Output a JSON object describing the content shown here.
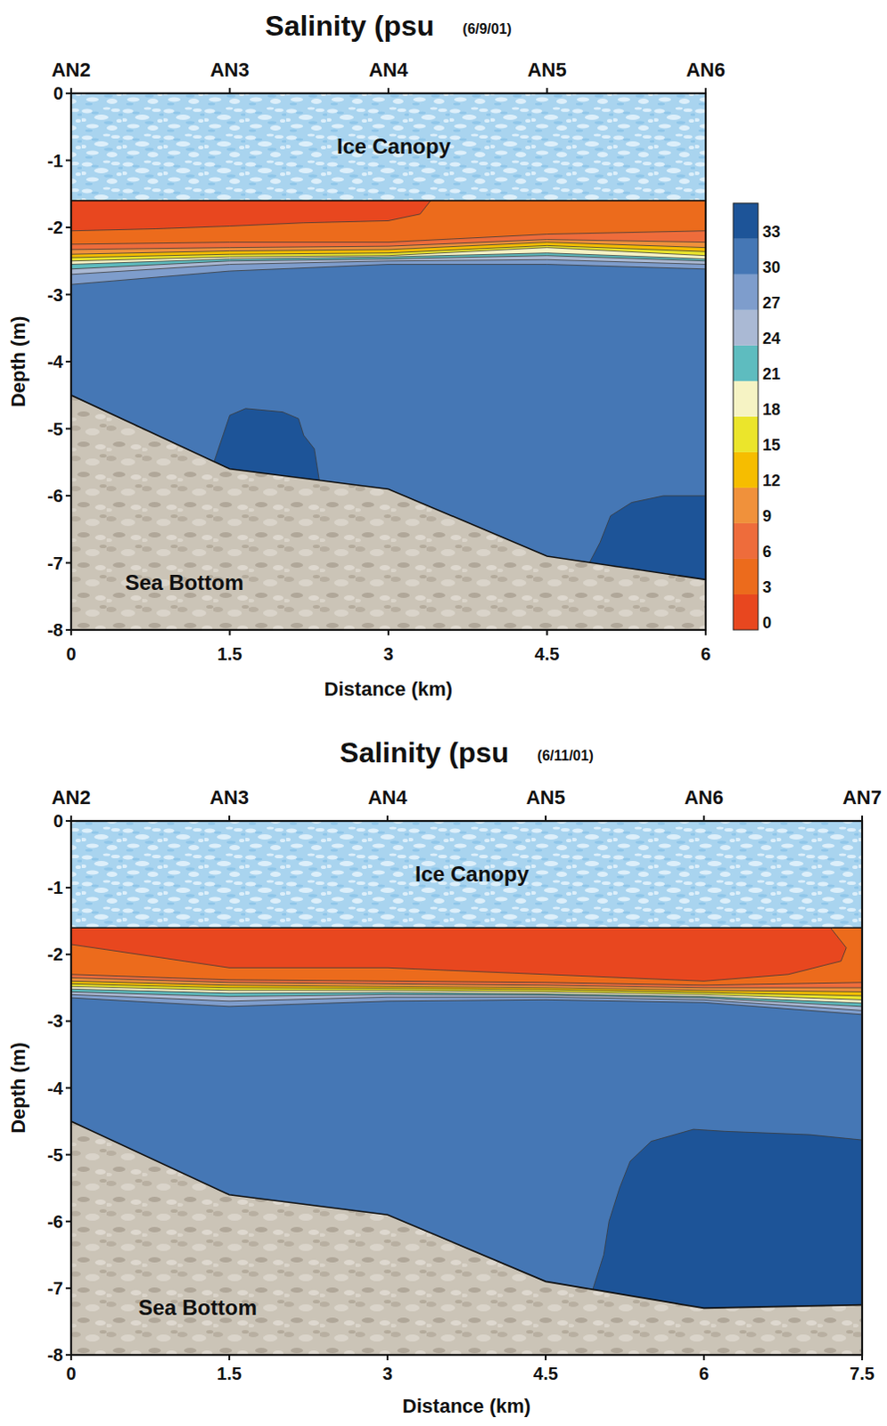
{
  "chart_data": [
    {
      "type": "contour",
      "title": "Salinity (psu",
      "subtitle": "(6/9/01)",
      "xlabel": "Distance (km)",
      "ylabel": "Depth (m)",
      "xlim": [
        0,
        6
      ],
      "xticks": [
        0,
        1.5,
        3,
        4.5,
        6
      ],
      "ylim": [
        -8,
        0
      ],
      "yticks": [
        -8,
        -7,
        -6,
        -5,
        -4,
        -3,
        -2,
        -1,
        0
      ],
      "stations": [
        {
          "value": 0,
          "label": "AN2"
        },
        {
          "value": 1.5,
          "label": "AN3"
        },
        {
          "value": 3,
          "label": "AN4"
        },
        {
          "value": 4.5,
          "label": "AN5"
        },
        {
          "value": 6,
          "label": "AN6"
        }
      ],
      "ice": {
        "label": "Ice Canopy",
        "depth": -1.6
      },
      "sea_bottom": {
        "label": "Sea Bottom",
        "x": [
          0,
          1.5,
          3,
          4.5,
          6
        ],
        "depth": [
          -4.5,
          -5.6,
          -5.9,
          -6.9,
          -7.25
        ]
      },
      "colorbar": {
        "levels": [
          0,
          3,
          6,
          9,
          12,
          15,
          18,
          21,
          24,
          27,
          30,
          33,
          36
        ],
        "colors": [
          "#e8471f",
          "#ec6b1c",
          "#ee6c3b",
          "#f0913b",
          "#f6bd00",
          "#ebe52b",
          "#f6f3c4",
          "#5ebcbf",
          "#aab9d4",
          "#7e9dcc",
          "#4577b5",
          "#1d5498"
        ],
        "ticks": [
          0,
          3,
          6,
          9,
          12,
          15,
          18,
          21,
          24,
          27,
          30,
          33
        ]
      },
      "regions": [
        {
          "salinity": [
            30,
            33
          ],
          "x": [
            0,
            6,
            6,
            0
          ],
          "depth": [
            -1.6,
            -1.6,
            -8,
            -8
          ]
        },
        {
          "salinity": [
            33,
            36
          ],
          "x": [
            1.35,
            1.5,
            1.65,
            2.0,
            2.15,
            2.2,
            2.3,
            2.35,
            1.35
          ],
          "depth": [
            -5.5,
            -4.8,
            -4.7,
            -4.75,
            -4.85,
            -5.1,
            -5.3,
            -5.8,
            -5.8
          ]
        },
        {
          "salinity": [
            33,
            36
          ],
          "x": [
            4.9,
            5.0,
            5.1,
            5.3,
            5.6,
            6,
            6,
            4.9
          ],
          "depth": [
            -7.0,
            -6.7,
            -6.3,
            -6.1,
            -6.0,
            -6.0,
            -7.5,
            -7.5
          ]
        },
        {
          "salinity": [
            27,
            30
          ],
          "x": [
            0,
            6,
            6,
            4.5,
            3,
            1.5,
            0
          ],
          "depth": [
            -1.6,
            -1.6,
            -2.62,
            -2.55,
            -2.55,
            -2.65,
            -2.85
          ]
        },
        {
          "salinity": [
            24,
            27
          ],
          "x": [
            0,
            6,
            6,
            4.5,
            3,
            1.5,
            0
          ],
          "depth": [
            -1.6,
            -1.6,
            -2.55,
            -2.48,
            -2.5,
            -2.55,
            -2.7
          ]
        },
        {
          "salinity": [
            21,
            24
          ],
          "x": [
            0,
            6,
            6,
            4.5,
            3,
            1.5,
            0
          ],
          "depth": [
            -1.6,
            -1.6,
            -2.5,
            -2.42,
            -2.47,
            -2.5,
            -2.62
          ]
        },
        {
          "salinity": [
            18,
            21
          ],
          "x": [
            0,
            6,
            6,
            4.5,
            3,
            1.5,
            0
          ],
          "depth": [
            -1.6,
            -1.6,
            -2.47,
            -2.38,
            -2.44,
            -2.47,
            -2.55
          ]
        },
        {
          "salinity": [
            15,
            18
          ],
          "x": [
            0,
            6,
            6,
            4.5,
            3,
            1.5,
            0
          ],
          "depth": [
            -1.6,
            -1.6,
            -2.42,
            -2.3,
            -2.42,
            -2.44,
            -2.5
          ]
        },
        {
          "salinity": [
            12,
            15
          ],
          "x": [
            0,
            6,
            6,
            4.5,
            3,
            1.5,
            0
          ],
          "depth": [
            -1.6,
            -1.6,
            -2.36,
            -2.27,
            -2.38,
            -2.4,
            -2.45
          ]
        },
        {
          "salinity": [
            9,
            12
          ],
          "x": [
            0,
            6,
            6,
            4.5,
            3,
            1.5,
            0
          ],
          "depth": [
            -1.6,
            -1.6,
            -2.3,
            -2.22,
            -2.33,
            -2.35,
            -2.4
          ]
        },
        {
          "salinity": [
            6,
            9
          ],
          "x": [
            0,
            6,
            6,
            4.5,
            3,
            1.5,
            0
          ],
          "depth": [
            -1.6,
            -1.6,
            -2.22,
            -2.18,
            -2.28,
            -2.3,
            -2.33
          ]
        },
        {
          "salinity": [
            3,
            6
          ],
          "x": [
            0,
            6,
            6,
            4.5,
            3,
            1.5,
            0
          ],
          "depth": [
            -1.6,
            -1.6,
            -2.05,
            -2.1,
            -2.22,
            -2.22,
            -2.25
          ]
        },
        {
          "salinity": [
            0,
            3
          ],
          "x": [
            0,
            3.4,
            3.3,
            3,
            2.2,
            1.5,
            0.8,
            0
          ],
          "depth": [
            -1.6,
            -1.6,
            -1.8,
            -1.9,
            -1.93,
            -1.98,
            -2.02,
            -2.05
          ]
        }
      ]
    },
    {
      "type": "contour",
      "title": "Salinity (psu",
      "subtitle": "(6/11/01)",
      "xlabel": "Distance (km)",
      "ylabel": "Depth (m)",
      "xlim": [
        0,
        7.5
      ],
      "xticks": [
        0,
        1.5,
        3,
        4.5,
        6,
        7.5
      ],
      "ylim": [
        -8,
        0
      ],
      "yticks": [
        -8,
        -7,
        -6,
        -5,
        -4,
        -3,
        -2,
        -1,
        0
      ],
      "stations": [
        {
          "value": 0,
          "label": "AN2"
        },
        {
          "value": 1.5,
          "label": "AN3"
        },
        {
          "value": 3,
          "label": "AN4"
        },
        {
          "value": 4.5,
          "label": "AN5"
        },
        {
          "value": 6,
          "label": "AN6"
        },
        {
          "value": 7.5,
          "label": "AN7"
        }
      ],
      "ice": {
        "label": "Ice Canopy",
        "depth": -1.6
      },
      "sea_bottom": {
        "label": "Sea Bottom",
        "x": [
          0,
          1.5,
          3,
          4.5,
          6,
          7.5
        ],
        "depth": [
          -4.5,
          -5.6,
          -5.9,
          -6.9,
          -7.3,
          -7.25
        ]
      },
      "regions": [
        {
          "salinity": [
            30,
            33
          ],
          "x": [
            0,
            7.5,
            7.5,
            0
          ],
          "depth": [
            -1.6,
            -1.6,
            -8,
            -8
          ]
        },
        {
          "salinity": [
            33,
            36
          ],
          "x": [
            4.95,
            5.05,
            5.1,
            5.2,
            5.3,
            5.5,
            5.9,
            6.2,
            7.0,
            7.5,
            7.5,
            4.95
          ],
          "depth": [
            -7.0,
            -6.5,
            -6.0,
            -5.5,
            -5.1,
            -4.8,
            -4.62,
            -4.65,
            -4.7,
            -4.78,
            -7.5,
            -7.5
          ]
        },
        {
          "salinity": [
            27,
            30
          ],
          "x": [
            0,
            7.5,
            7.5,
            6,
            4.5,
            3,
            1.5,
            0
          ],
          "depth": [
            -1.6,
            -1.6,
            -2.9,
            -2.72,
            -2.68,
            -2.7,
            -2.78,
            -2.65
          ]
        },
        {
          "salinity": [
            24,
            27
          ],
          "x": [
            0,
            7.5,
            7.5,
            6,
            4.5,
            3,
            1.5,
            0
          ],
          "depth": [
            -1.6,
            -1.6,
            -2.84,
            -2.68,
            -2.64,
            -2.64,
            -2.7,
            -2.6
          ]
        },
        {
          "salinity": [
            21,
            24
          ],
          "x": [
            0,
            7.5,
            7.5,
            6,
            4.5,
            3,
            1.5,
            0
          ],
          "depth": [
            -1.6,
            -1.6,
            -2.78,
            -2.65,
            -2.61,
            -2.6,
            -2.63,
            -2.56
          ]
        },
        {
          "salinity": [
            18,
            21
          ],
          "x": [
            0,
            7.5,
            7.5,
            6,
            4.5,
            3,
            1.5,
            0
          ],
          "depth": [
            -1.6,
            -1.6,
            -2.73,
            -2.63,
            -2.59,
            -2.57,
            -2.58,
            -2.52
          ]
        },
        {
          "salinity": [
            15,
            18
          ],
          "x": [
            0,
            7.5,
            7.5,
            6,
            4.5,
            3,
            1.5,
            0
          ],
          "depth": [
            -1.6,
            -1.6,
            -2.68,
            -2.6,
            -2.56,
            -2.54,
            -2.54,
            -2.48
          ]
        },
        {
          "salinity": [
            12,
            15
          ],
          "x": [
            0,
            7.5,
            7.5,
            6,
            4.5,
            3,
            1.5,
            0
          ],
          "depth": [
            -1.6,
            -1.6,
            -2.62,
            -2.57,
            -2.53,
            -2.51,
            -2.5,
            -2.44
          ]
        },
        {
          "salinity": [
            9,
            12
          ],
          "x": [
            0,
            7.5,
            7.5,
            6,
            4.5,
            3,
            1.5,
            0
          ],
          "depth": [
            -1.6,
            -1.6,
            -2.56,
            -2.54,
            -2.5,
            -2.48,
            -2.46,
            -2.4
          ]
        },
        {
          "salinity": [
            6,
            9
          ],
          "x": [
            0,
            7.5,
            7.5,
            6,
            4.5,
            3,
            1.5,
            0
          ],
          "depth": [
            -1.6,
            -1.6,
            -2.5,
            -2.5,
            -2.46,
            -2.44,
            -2.42,
            -2.35
          ]
        },
        {
          "salinity": [
            3,
            6
          ],
          "x": [
            0,
            7.5,
            7.5,
            6,
            4.5,
            3,
            1.5,
            0
          ],
          "depth": [
            -1.6,
            -1.6,
            -2.42,
            -2.46,
            -2.42,
            -2.4,
            -2.38,
            -2.3
          ]
        },
        {
          "salinity": [
            0,
            3
          ],
          "x": [
            0,
            7.2,
            7.35,
            7.3,
            6.8,
            6,
            4.5,
            3,
            1.5,
            0
          ],
          "depth": [
            -1.6,
            -1.6,
            -1.9,
            -2.1,
            -2.3,
            -2.4,
            -2.3,
            -2.2,
            -2.2,
            -1.85
          ]
        }
      ]
    }
  ]
}
